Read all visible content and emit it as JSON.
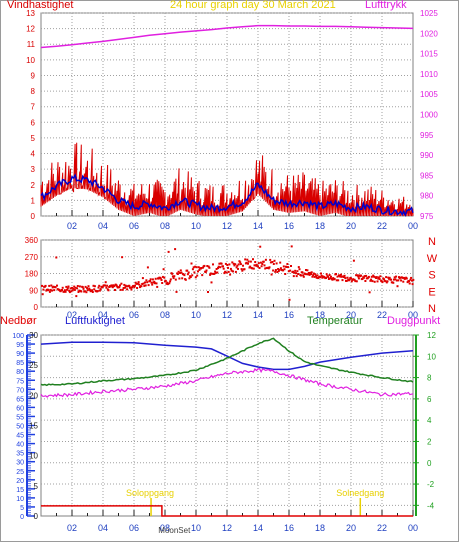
{
  "header": {
    "left_label": "Vindhastighet",
    "title": "24 hour graph day   30 March 2021",
    "right_label": "Lufttrykk"
  },
  "colors": {
    "wind": "#d80000",
    "avg_wind": "#0000cc",
    "pressure": "#e020e0",
    "direction": "#e00000",
    "humidity": "#2020d0",
    "temperature": "#208020",
    "dewpoint": "#e020e0",
    "rain": "#e00000",
    "rain_axis": "#2040e0",
    "temp_axis": "#20a020",
    "twilight": "#e8d000",
    "grid": "#a0a0a0",
    "panel_bg": "#ffffff"
  },
  "compass": [
    "N",
    "W",
    "S",
    "E",
    "N"
  ],
  "bottom_labels": {
    "rain": "Nedbør",
    "humidity": "Luftfuktighet",
    "temperature": "Temperatur",
    "dewpoint": "Duggpunkt",
    "sunrise": "Soloppgang",
    "sunset": "Solnedgang",
    "moonset": "MoonSet"
  },
  "chart_data": [
    {
      "type": "line",
      "title": "24 hour graph day   30 March 2021",
      "x_ticks": [
        "02",
        "04",
        "06",
        "08",
        "10",
        "12",
        "14",
        "16",
        "18",
        "20",
        "22",
        "00"
      ],
      "x_range_hours": [
        0,
        24
      ],
      "left_axis": {
        "label": "Vindhastighet",
        "range": [
          0,
          13
        ],
        "ticks": [
          0,
          1,
          2,
          3,
          4,
          5,
          6,
          7,
          8,
          9,
          10,
          11,
          12,
          13
        ]
      },
      "right_axis": {
        "label": "Lufttrykk",
        "range": [
          975,
          1025
        ],
        "ticks": [
          975,
          980,
          985,
          990,
          995,
          1000,
          1005,
          1010,
          1015,
          1020,
          1025
        ]
      },
      "series": [
        {
          "name": "Lufttrykk",
          "axis": "right",
          "x": [
            0,
            1,
            2,
            3,
            4,
            5,
            6,
            7,
            8,
            9,
            10,
            11,
            12,
            13,
            14,
            15,
            16,
            17,
            18,
            19,
            20,
            21,
            22,
            23,
            24
          ],
          "values": [
            1016.5,
            1016.8,
            1017.2,
            1017.6,
            1018.0,
            1018.5,
            1019.0,
            1019.5,
            1019.9,
            1020.3,
            1020.6,
            1020.9,
            1021.3,
            1021.6,
            1021.9,
            1021.9,
            1021.8,
            1021.8,
            1021.7,
            1021.7,
            1021.6,
            1021.5,
            1021.4,
            1021.3,
            1021.2
          ]
        },
        {
          "name": "avg_wind",
          "axis": "left",
          "x": [
            0,
            1,
            2,
            3,
            4,
            5,
            6,
            7,
            8,
            9,
            10,
            11,
            12,
            13,
            14,
            15,
            16,
            17,
            18,
            19,
            20,
            21,
            22,
            23,
            24
          ],
          "values": [
            1.2,
            1.9,
            2.4,
            2.3,
            1.8,
            1.0,
            0.6,
            0.8,
            0.5,
            1.0,
            0.7,
            0.5,
            0.6,
            0.9,
            2.0,
            1.0,
            0.8,
            0.9,
            0.6,
            0.8,
            0.5,
            0.6,
            0.4,
            0.3,
            0.3
          ]
        },
        {
          "name": "gust",
          "axis": "left",
          "x": [
            0,
            1,
            2,
            3,
            4,
            5,
            6,
            7,
            8,
            9,
            10,
            11,
            12,
            13,
            14,
            15,
            16,
            17,
            18,
            19,
            20,
            21,
            22,
            23,
            24
          ],
          "values": [
            2.5,
            3.2,
            3.9,
            3.7,
            3.0,
            2.2,
            1.7,
            2.0,
            1.8,
            2.6,
            2.0,
            1.7,
            1.8,
            2.2,
            3.6,
            2.5,
            2.2,
            2.3,
            1.8,
            2.0,
            1.6,
            1.7,
            1.4,
            1.1,
            1.0
          ]
        }
      ]
    },
    {
      "type": "scatter",
      "x_ticks": [
        "02",
        "04",
        "06",
        "08",
        "10",
        "12",
        "14",
        "16",
        "18",
        "20",
        "22",
        "00"
      ],
      "y_axis": {
        "range": [
          0,
          360
        ],
        "ticks": [
          0,
          90,
          180,
          270,
          360
        ]
      },
      "series": [
        {
          "name": "direction",
          "x": [
            0,
            2,
            4,
            6,
            8,
            10,
            12,
            14,
            16,
            18,
            20,
            22,
            24
          ],
          "values": [
            100,
            95,
            100,
            115,
            150,
            190,
            210,
            240,
            200,
            165,
            155,
            150,
            140
          ]
        }
      ]
    },
    {
      "type": "line",
      "x_ticks": [
        "02",
        "04",
        "06",
        "08",
        "10",
        "12",
        "14",
        "16",
        "18",
        "20",
        "22",
        "00"
      ],
      "left_axis": {
        "label": "Nedbør",
        "range": [
          0,
          100
        ],
        "ticks": [
          0,
          5,
          10,
          15,
          20,
          25,
          30,
          35,
          40,
          45,
          50,
          55,
          60,
          65,
          70,
          75,
          80,
          85,
          90,
          95,
          100
        ]
      },
      "inner_left_axis": {
        "label": "Luftfuktighet",
        "range": [
          0,
          30
        ],
        "ticks": [
          0,
          5,
          10,
          15,
          20,
          25,
          30
        ]
      },
      "right_axis": {
        "label": "Temperatur",
        "range": [
          -5,
          12
        ],
        "ticks": [
          -4,
          -2,
          0,
          2,
          4,
          6,
          8,
          10,
          12
        ]
      },
      "series": [
        {
          "name": "Luftfuktighet",
          "axis": "inner_left",
          "x": [
            0,
            2,
            4,
            6,
            8,
            10,
            11,
            12,
            13,
            14,
            15,
            16,
            17,
            18,
            20,
            22,
            24
          ],
          "values": [
            28.5,
            28.8,
            28.8,
            28.7,
            28.3,
            28.0,
            27.7,
            26.5,
            25.3,
            24.7,
            24.3,
            24.3,
            24.8,
            25.5,
            26.3,
            27.0,
            27.4
          ]
        },
        {
          "name": "Temperatur",
          "axis": "right",
          "x": [
            0,
            2,
            4,
            6,
            8,
            10,
            12,
            13,
            14,
            15,
            16,
            17,
            18,
            20,
            22,
            24
          ],
          "values": [
            7.3,
            7.4,
            7.7,
            7.9,
            8.2,
            8.7,
            9.8,
            10.5,
            11.2,
            11.7,
            10.5,
            9.5,
            9.1,
            8.5,
            8.0,
            7.6
          ]
        },
        {
          "name": "Duggpunkt",
          "axis": "right",
          "x": [
            0,
            2,
            4,
            6,
            8,
            10,
            12,
            14,
            15,
            16,
            18,
            20,
            22,
            24
          ],
          "values": [
            6.3,
            6.4,
            6.7,
            6.9,
            7.2,
            7.7,
            8.4,
            8.7,
            8.6,
            8.2,
            7.4,
            6.9,
            6.4,
            6.5
          ]
        },
        {
          "name": "Nedbør",
          "axis": "left",
          "x": [
            0,
            7.8,
            7.8,
            24
          ],
          "values": [
            5.6,
            5.6,
            0,
            0
          ]
        }
      ]
    }
  ]
}
